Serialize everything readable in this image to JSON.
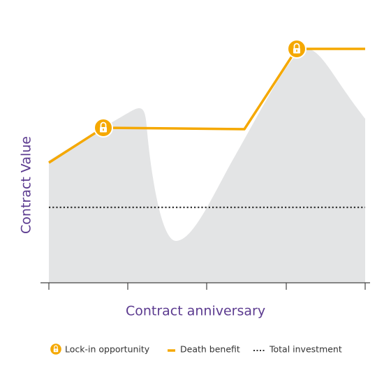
{
  "axes": {
    "y_label": "Contract Value",
    "x_label": "Contract anniversary"
  },
  "legend": [
    "Lock-in opportunity",
    "Death benefit",
    "Total investment"
  ]
}
